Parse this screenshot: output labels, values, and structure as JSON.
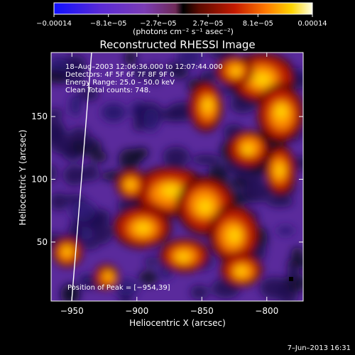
{
  "chart_data": {
    "type": "heatmap",
    "title": "Reconstructed RHESSI Image",
    "xlabel": "Heliocentric X (arcsec)",
    "ylabel": "Heliocentric Y (arcsec)",
    "xlim": [
      -966,
      -772
    ],
    "ylim": [
      3,
      201
    ],
    "xticks": [
      -950,
      -900,
      -850,
      -800
    ],
    "yticks": [
      50,
      100,
      150
    ],
    "xtick_labels": [
      "−950",
      "−900",
      "−850",
      "−800"
    ],
    "ytick_labels": [
      "50",
      "100",
      "150"
    ],
    "colorbar": {
      "range": [
        -0.00014,
        0.00014
      ],
      "tick_values": [
        -0.00014,
        -8.1e-05,
        -2.7e-05,
        2.7e-05,
        8.1e-05,
        0.00014
      ],
      "tick_labels": [
        "−0.00014",
        "−8.1e−05",
        "−2.7e−05",
        "2.7e−05",
        "8.1e−05",
        "0.00014"
      ],
      "unit_label": "(photons cm⁻² s⁻¹ asec⁻²)"
    },
    "annotations": [
      "18–Aug–2003 12:06:36.000 to 12:07:44.000",
      "Detectors: 4F 5F 6F 7F 8F 9F 0",
      "Energy Range: 25.0 – 50.0 keV",
      "Clean    Total counts: 748."
    ],
    "peak_label": "Position of Peak = [−954,39]",
    "peak": [
      -954,
      39
    ],
    "grid": false
  },
  "timestamp": "7–Jun–2013 16:31"
}
